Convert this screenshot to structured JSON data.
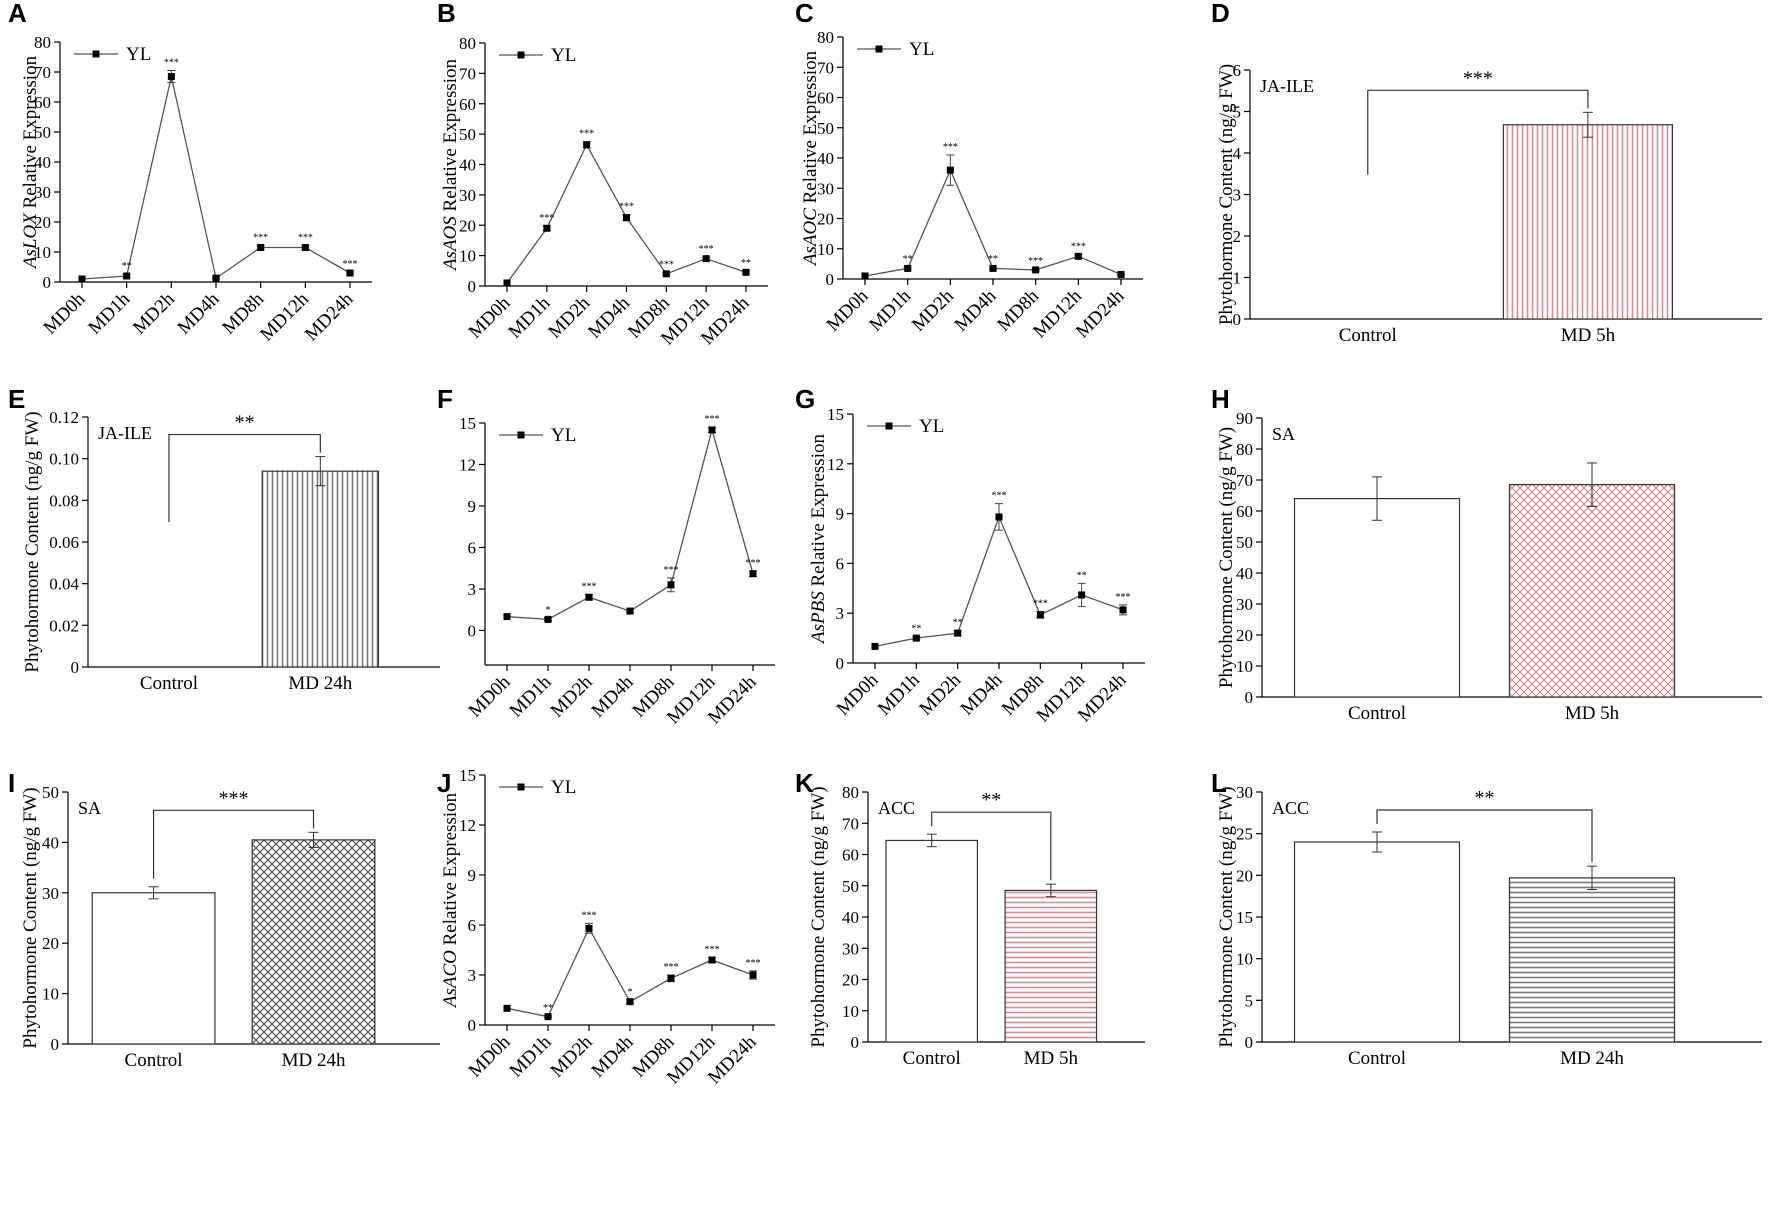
{
  "chart_data": [
    {
      "panel": "A",
      "type": "line",
      "categories": [
        "MD0h",
        "MD1h",
        "MD2h",
        "MD4h",
        "MD8h",
        "MD12h",
        "MD24h"
      ],
      "series": [
        {
          "name": "YL",
          "values": [
            1,
            2,
            68.5,
            1.3,
            11.5,
            11.5,
            3
          ],
          "errors": [
            0,
            0.6,
            2,
            0.3,
            0.6,
            0.6,
            0.4
          ]
        }
      ],
      "sig": [
        "",
        "**",
        "***",
        "",
        "***",
        "***",
        "***"
      ],
      "ylabel": "AsLOX Relative Expression",
      "gene": "AsLOX",
      "ylim": [
        0,
        80
      ],
      "yticks": [
        0,
        10,
        20,
        30,
        40,
        50,
        60,
        70,
        80
      ]
    },
    {
      "panel": "B",
      "type": "line",
      "categories": [
        "MD0h",
        "MD1h",
        "MD2h",
        "MD4h",
        "MD8h",
        "MD12h",
        "MD24h"
      ],
      "series": [
        {
          "name": "YL",
          "values": [
            1,
            19,
            46.5,
            22.5,
            4,
            9,
            4.5
          ],
          "errors": [
            0,
            0.8,
            1,
            1,
            0.4,
            0.5,
            0.4
          ]
        }
      ],
      "sig": [
        "",
        "***",
        "***",
        "***",
        "***",
        "***",
        "**"
      ],
      "ylabel": "AsAOS Relative Expression",
      "gene": "AsAOS",
      "ylim": [
        0,
        80
      ],
      "yticks": [
        0,
        10,
        20,
        30,
        40,
        50,
        60,
        70,
        80
      ]
    },
    {
      "panel": "C",
      "type": "line",
      "categories": [
        "MD0h",
        "MD1h",
        "MD2h",
        "MD4h",
        "MD8h",
        "MD12h",
        "MD24h"
      ],
      "series": [
        {
          "name": "YL",
          "values": [
            1,
            3.5,
            36,
            3.5,
            3,
            7.5,
            1.5
          ],
          "errors": [
            0,
            0.5,
            5,
            0.4,
            0.3,
            0.6,
            0.2
          ]
        }
      ],
      "sig": [
        "",
        "**",
        "***",
        "**",
        "***",
        "***",
        ""
      ],
      "ylabel": "AsAOC Relative Expression",
      "gene": "AsAOC",
      "ylim": [
        0,
        80
      ],
      "yticks": [
        0,
        10,
        20,
        30,
        40,
        50,
        60,
        70,
        80
      ]
    },
    {
      "panel": "D",
      "type": "bar",
      "categories": [
        "Control",
        "MD 5h"
      ],
      "values": [
        0,
        4.68
      ],
      "errors": [
        0,
        0.3
      ],
      "ylabel": "Phytohormone Content (ng/g FW)",
      "inset": "JA-ILE",
      "sig": "***",
      "ylim": [
        0,
        6
      ],
      "yticks": [
        0,
        1,
        2,
        3,
        4,
        5,
        6
      ],
      "fill": [
        "white",
        "red-vertical-stripes"
      ]
    },
    {
      "panel": "E",
      "type": "bar",
      "categories": [
        "Control",
        "MD 24h"
      ],
      "values": [
        0,
        0.094
      ],
      "errors": [
        0,
        0.007
      ],
      "ylabel": "Phytohormone Content (ng/g FW)",
      "inset": "JA-ILE",
      "sig": "**",
      "ylim": [
        0,
        0.12
      ],
      "yticks": [
        0,
        0.02,
        0.04,
        0.06,
        0.08,
        0.1,
        0.12
      ],
      "ytick_labels": [
        "0",
        "0.02",
        "0.04",
        "0.06",
        "0.08",
        "0.10",
        "0.12"
      ],
      "fill": [
        "white",
        "grey-vertical-stripes"
      ]
    },
    {
      "panel": "F",
      "type": "line",
      "categories": [
        "MD0h",
        "MD1h",
        "MD2h",
        "MD4h",
        "MD8h",
        "MD12h",
        "MD24h"
      ],
      "series": [
        {
          "name": "YL",
          "values": [
            1,
            0.8,
            2.4,
            1.4,
            3.3,
            14.5,
            4.1
          ],
          "errors": [
            0,
            0.1,
            0.2,
            0.1,
            0.5,
            0.2,
            0.2
          ]
        }
      ],
      "sig": [
        "",
        "*",
        "***",
        "",
        "***",
        "***",
        "***"
      ],
      "ylabel": "",
      "ylim": [
        -2.5,
        15
      ],
      "yticks": [
        0,
        3,
        6,
        9,
        12,
        15
      ],
      "ytick_labels": [
        "0",
        "3",
        "6",
        "9",
        "12",
        "15"
      ]
    },
    {
      "panel": "G",
      "type": "line",
      "categories": [
        "MD0h",
        "MD1h",
        "MD2h",
        "MD4h",
        "MD8h",
        "MD12h",
        "MD24h"
      ],
      "series": [
        {
          "name": "YL",
          "values": [
            1,
            1.5,
            1.8,
            8.8,
            2.9,
            4.1,
            3.2
          ],
          "errors": [
            0,
            0.1,
            0.15,
            0.8,
            0.2,
            0.7,
            0.3
          ]
        }
      ],
      "sig": [
        "",
        "**",
        "**",
        "***",
        "***",
        "**",
        "***"
      ],
      "ylabel": "AsPBS Relative Expression",
      "gene": "AsPBS",
      "ylim": [
        0,
        15
      ],
      "yticks": [
        0,
        3,
        6,
        9,
        12,
        15
      ]
    },
    {
      "panel": "H",
      "type": "bar",
      "categories": [
        "Control",
        "MD 5h"
      ],
      "values": [
        64,
        68.5
      ],
      "errors": [
        7,
        7
      ],
      "ylabel": "Phytohormone Content (ng/g FW)",
      "inset": "SA",
      "sig": "",
      "ylim": [
        0,
        90
      ],
      "yticks": [
        0,
        10,
        20,
        30,
        40,
        50,
        60,
        70,
        80,
        90
      ],
      "fill": [
        "white",
        "red-crosshatch"
      ]
    },
    {
      "panel": "I",
      "type": "bar",
      "categories": [
        "Control",
        "MD 24h"
      ],
      "values": [
        30,
        40.5
      ],
      "errors": [
        1.2,
        1.5
      ],
      "ylabel": "Phytohormone Content (ng/g FW)",
      "inset": "SA",
      "sig": "***",
      "ylim": [
        0,
        50
      ],
      "yticks": [
        0,
        10,
        20,
        30,
        40,
        50
      ],
      "fill": [
        "white",
        "grey-crosshatch"
      ]
    },
    {
      "panel": "J",
      "type": "line",
      "categories": [
        "MD0h",
        "MD1h",
        "MD2h",
        "MD4h",
        "MD8h",
        "MD12h",
        "MD24h"
      ],
      "series": [
        {
          "name": "YL",
          "values": [
            1,
            0.5,
            5.8,
            1.4,
            2.8,
            3.9,
            3
          ],
          "errors": [
            0,
            0.05,
            0.3,
            0.1,
            0.2,
            0.15,
            0.25
          ]
        }
      ],
      "sig": [
        "",
        "**",
        "***",
        "*",
        "***",
        "***",
        "***"
      ],
      "ylabel": "AsACO Relative Expression",
      "gene": "AsACO",
      "ylim": [
        0,
        15
      ],
      "yticks": [
        0,
        3,
        6,
        9,
        12,
        15
      ]
    },
    {
      "panel": "K",
      "type": "bar",
      "categories": [
        "Control",
        "MD 5h"
      ],
      "values": [
        64.5,
        48.5
      ],
      "errors": [
        2,
        2
      ],
      "ylabel": "Phytohormone Content (ng/g FW)",
      "inset": "ACC",
      "sig": "**",
      "ylim": [
        0,
        80
      ],
      "yticks": [
        0,
        10,
        20,
        30,
        40,
        50,
        60,
        70,
        80
      ],
      "fill": [
        "white",
        "red-horizontal-stripes"
      ]
    },
    {
      "panel": "L",
      "type": "bar",
      "categories": [
        "Control",
        "MD 24h"
      ],
      "values": [
        24,
        19.7
      ],
      "errors": [
        1.2,
        1.4
      ],
      "ylabel": "Phytohormone Content (ng/g FW)",
      "inset": "ACC",
      "sig": "**",
      "ylim": [
        0,
        30
      ],
      "yticks": [
        0,
        5,
        10,
        15,
        20,
        25,
        30
      ],
      "fill": [
        "white",
        "grey-horizontal-stripes"
      ]
    }
  ]
}
